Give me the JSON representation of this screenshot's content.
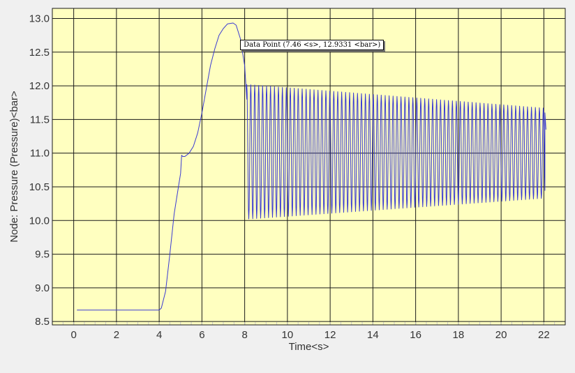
{
  "chart_data": {
    "type": "line",
    "title": "",
    "xlabel": "Time<s>",
    "ylabel": "Node: Pressure (Pressure)<bar>",
    "xlim": [
      -1,
      23
    ],
    "ylim": [
      8.45,
      13.15
    ],
    "x_ticks": [
      0,
      2,
      4,
      6,
      8,
      10,
      12,
      14,
      16,
      18,
      20,
      22
    ],
    "x_tick_labels": [
      "0",
      "2",
      "4",
      "6",
      "8",
      "10",
      "12",
      "14",
      "16",
      "18",
      "20",
      "22"
    ],
    "y_ticks": [
      8.5,
      9.0,
      9.5,
      10.0,
      10.5,
      11.0,
      11.5,
      12.0,
      12.5,
      13.0
    ],
    "y_tick_labels": [
      "8.5",
      "9.0",
      "9.5",
      "10.0",
      "10.5",
      "11.0",
      "11.5",
      "12.0",
      "12.5",
      "13.0"
    ],
    "grid": true,
    "legend": "none",
    "series": [
      {
        "color": "#3a3ad2",
        "segments": [
          {
            "kind": "smooth",
            "x": [
              0.15,
              1.0,
              2.0,
              3.0,
              4.0,
              4.1,
              4.3,
              4.5,
              4.7,
              4.9,
              5.0,
              5.05,
              5.1,
              5.2,
              5.4,
              5.6,
              5.8,
              6.0,
              6.2,
              6.4,
              6.6,
              6.8,
              7.0,
              7.2,
              7.4,
              7.46,
              7.6,
              7.8,
              8.0,
              8.1
            ],
            "y": [
              8.67,
              8.67,
              8.67,
              8.67,
              8.67,
              8.7,
              8.95,
              9.5,
              10.1,
              10.5,
              10.7,
              10.97,
              10.95,
              10.95,
              11.0,
              11.1,
              11.3,
              11.6,
              11.95,
              12.3,
              12.55,
              12.75,
              12.85,
              12.92,
              12.93,
              12.9331,
              12.9,
              12.7,
              12.3,
              11.8
            ]
          },
          {
            "kind": "oscillation",
            "x_start": 8.1,
            "x_end": 22.05,
            "period": 0.185,
            "upper_start": 12.02,
            "upper_end": 11.67,
            "lower_start": 10.02,
            "lower_end": 10.33
          },
          {
            "kind": "smooth",
            "x": [
              22.05,
              22.1
            ],
            "y": [
              11.6,
              11.35
            ]
          }
        ]
      }
    ],
    "annotations": [
      {
        "text": "Data Point (7.46 <s>, 12.9331 <bar>)",
        "x": 7.46,
        "y": 12.9331
      }
    ]
  },
  "colors": {
    "plot_background": "#ffffc0",
    "grid_line": "#1a1a1a",
    "axis_line": "#1a1a1a",
    "minor_tick": "#c8c8c8",
    "outer_background": "#f0f0f0"
  }
}
